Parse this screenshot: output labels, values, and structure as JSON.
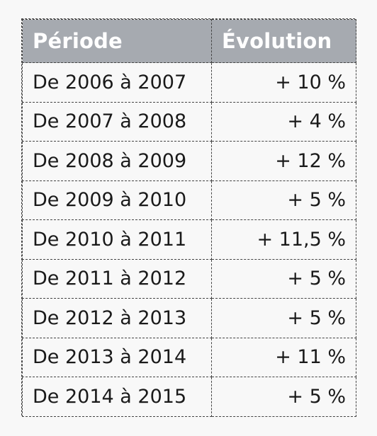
{
  "table": {
    "headers": {
      "period": "Période",
      "evolution": "Évolution"
    },
    "rows": [
      {
        "period": "De 2006 à 2007",
        "evolution": "+ 10 %"
      },
      {
        "period": "De 2007 à 2008",
        "evolution": "+ 4 %"
      },
      {
        "period": "De 2008 à 2009",
        "evolution": "+ 12 %"
      },
      {
        "period": "De 2009 à 2010",
        "evolution": "+ 5 %"
      },
      {
        "period": "De 2010 à 2011",
        "evolution": "+ 11,5 %"
      },
      {
        "period": "De 2011 à 2012",
        "evolution": "+ 5 %"
      },
      {
        "period": "De 2012 à 2013",
        "evolution": "+ 5 %"
      },
      {
        "period": "De 2013 à 2014",
        "evolution": "+ 11 %"
      },
      {
        "period": "De 2014 à 2015",
        "evolution": "+ 5 %"
      }
    ]
  },
  "colors": {
    "header_bg": "#a6aab0",
    "header_text": "#ffffff",
    "border": "#444444",
    "page_bg": "#f8f8f8"
  }
}
